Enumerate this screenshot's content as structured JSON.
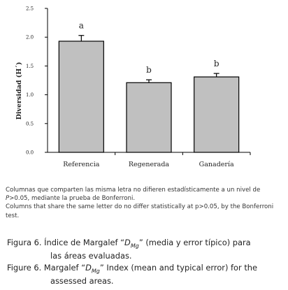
{
  "chart_data": {
    "type": "bar",
    "categories": [
      "Referencia",
      "Regenerada",
      "Ganadería"
    ],
    "values": [
      1.93,
      1.21,
      1.31
    ],
    "errors": [
      0.1,
      0.05,
      0.06
    ],
    "significance_letters": [
      "a",
      "b",
      "b"
    ],
    "ylabel": "Diversidad (H´)",
    "ylim": [
      0.0,
      2.5
    ],
    "yticks": [
      "0.0",
      "0.5",
      "1.0",
      "1.5",
      "2.0",
      "2.5"
    ],
    "bar_color": "#c0c0c0",
    "bar_edge_color": "#000000",
    "grid": false
  },
  "notes": {
    "es_line": "Columnas que comparten las misma letra no difieren estadísticamente a un nivel de ",
    "es_p": "P",
    "es_rest": ">0.05, mediante la prueba de Bonferroni.",
    "en_line": "Columns that share the same letter do no differ statistically at p>0.05, by the Bonferroni test."
  },
  "caption_es": {
    "prefix": "Figura 6. Índice de Margalef “",
    "symbol": "D",
    "sub": "Mg",
    "suffix": "” (media y error típico) para",
    "line2": "las áreas evaluadas."
  },
  "caption_en": {
    "prefix": "Figure 6. Margalef “",
    "symbol": "D",
    "sub": "Mg",
    "suffix": "” Index (mean and typical error) for the",
    "line2": "assessed areas."
  }
}
